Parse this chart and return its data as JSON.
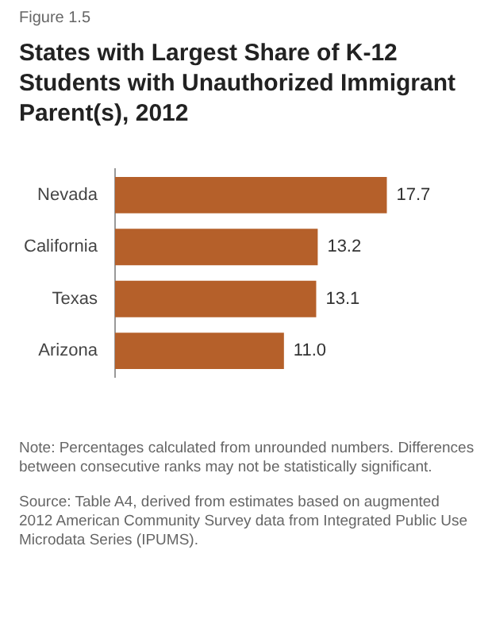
{
  "chart_data": {
    "type": "bar",
    "orientation": "horizontal",
    "title": "States with Largest Share of K-12 Students with Unauthorized Immigrant Parent(s), 2012",
    "categories": [
      "Nevada",
      "California",
      "Texas",
      "Arizona"
    ],
    "values": [
      17.7,
      13.2,
      13.1,
      11.0
    ],
    "value_labels": [
      "17.7",
      "13.2",
      "13.1",
      "11.0"
    ],
    "color": "#b5602a",
    "tick_labels": "y",
    "annotations": [
      "Figure 1.5",
      "Note: Percentages calculated from unrounded numbers. Differences between consecutive ranks may not be statistically significant.",
      "Source: Table A4, derived from estimates based on augmented 2012 American Community Survey data from Integrated Public Use Microdata Series (IPUMS)."
    ]
  }
}
